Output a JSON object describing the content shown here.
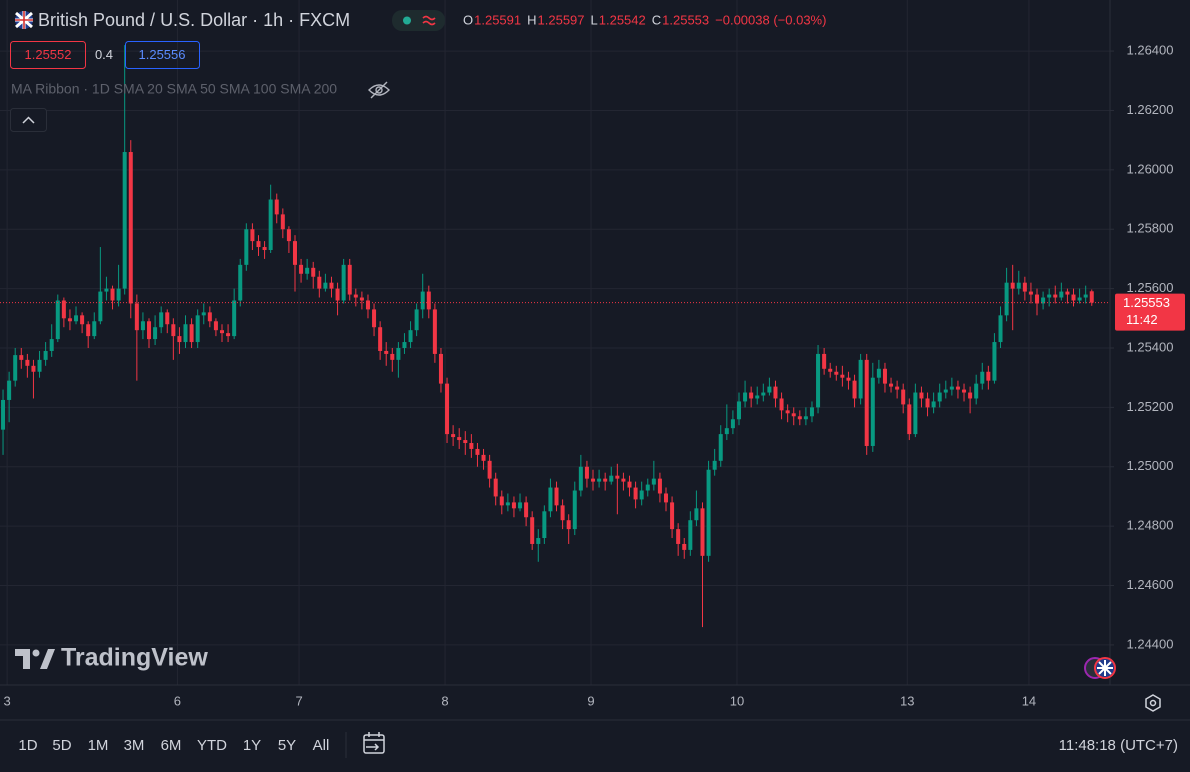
{
  "header": {
    "title": "British Pound / U.S. Dollar · 1h · FXCM",
    "ohlc_labels": [
      "O",
      "H",
      "L",
      "C"
    ],
    "change": "−0.00038 (−0.03%)",
    "sell": "1.25552",
    "spread": "0.4",
    "buy": "1.25556",
    "indicator": "MA Ribbon · 1D SMA 20 SMA 50 SMA 100 SMA 200"
  },
  "chart_data": {
    "type": "candlestick",
    "up_color": "#089981",
    "down_color": "#f23645",
    "grid": true,
    "xlim": [
      -0.5,
      182
    ],
    "ylim": [
      1.24265,
      1.26572
    ],
    "xticks": [
      {
        "value": 1,
        "label": "3"
      },
      {
        "value": 29,
        "label": "6"
      },
      {
        "value": 49,
        "label": "7"
      },
      {
        "value": 73,
        "label": "8"
      },
      {
        "value": 97,
        "label": "9"
      },
      {
        "value": 121,
        "label": "10"
      },
      {
        "value": 149,
        "label": "13"
      },
      {
        "value": 169,
        "label": "14"
      }
    ],
    "yticks": [
      {
        "value": 1.264,
        "label": "1.26400"
      },
      {
        "value": 1.262,
        "label": "1.26200"
      },
      {
        "value": 1.26,
        "label": "1.26000"
      },
      {
        "value": 1.258,
        "label": "1.25800"
      },
      {
        "value": 1.256,
        "label": "1.25600"
      },
      {
        "value": 1.254,
        "label": "1.25400"
      },
      {
        "value": 1.252,
        "label": "1.25200"
      },
      {
        "value": 1.25,
        "label": "1.25000"
      },
      {
        "value": 1.248,
        "label": "1.24800"
      },
      {
        "value": 1.246,
        "label": "1.24600"
      },
      {
        "value": 1.244,
        "label": "1.24400"
      }
    ],
    "last_price_countdown": "11:42",
    "candles": [
      [
        1.25125,
        1.2526,
        1.2504,
        1.25225
      ],
      [
        1.25225,
        1.2532,
        1.2515,
        1.2529
      ],
      [
        1.2529,
        1.254,
        1.2527,
        1.25376
      ],
      [
        1.25376,
        1.254,
        1.2533,
        1.2536
      ],
      [
        1.2536,
        1.2538,
        1.253,
        1.2534
      ],
      [
        1.2534,
        1.2536,
        1.2523,
        1.2532
      ],
      [
        1.2532,
        1.2539,
        1.253,
        1.2536
      ],
      [
        1.2536,
        1.2542,
        1.2534,
        1.2539
      ],
      [
        1.2539,
        1.2548,
        1.2537,
        1.2543
      ],
      [
        1.2543,
        1.2558,
        1.2542,
        1.2556
      ],
      [
        1.2556,
        1.2557,
        1.2547,
        1.255
      ],
      [
        1.255,
        1.2553,
        1.2546,
        1.2549
      ],
      [
        1.2549,
        1.2554,
        1.2548,
        1.2551
      ],
      [
        1.2551,
        1.2552,
        1.2545,
        1.2548
      ],
      [
        1.2548,
        1.2549,
        1.254,
        1.2544
      ],
      [
        1.2544,
        1.2552,
        1.2543,
        1.2549
      ],
      [
        1.2549,
        1.2574,
        1.2548,
        1.2559
      ],
      [
        1.2559,
        1.2564,
        1.2556,
        1.256
      ],
      [
        1.256,
        1.2561,
        1.2553,
        1.2556
      ],
      [
        1.2556,
        1.2568,
        1.2554,
        1.256
      ],
      [
        1.256,
        1.2642,
        1.2558,
        1.2606
      ],
      [
        1.2606,
        1.261,
        1.255,
        1.2555
      ],
      [
        1.2555,
        1.2558,
        1.2529,
        1.2546
      ],
      [
        1.2546,
        1.2552,
        1.2543,
        1.2549
      ],
      [
        1.2549,
        1.255,
        1.254,
        1.2543
      ],
      [
        1.2543,
        1.2551,
        1.2541,
        1.2547
      ],
      [
        1.2547,
        1.2554,
        1.2545,
        1.2552
      ],
      [
        1.2552,
        1.2553,
        1.2545,
        1.2548
      ],
      [
        1.2548,
        1.255,
        1.2536,
        1.2544
      ],
      [
        1.2544,
        1.2547,
        1.2538,
        1.2542
      ],
      [
        1.2542,
        1.2551,
        1.254,
        1.2548
      ],
      [
        1.2548,
        1.255,
        1.254,
        1.2542
      ],
      [
        1.2542,
        1.2553,
        1.254,
        1.2551
      ],
      [
        1.2551,
        1.2555,
        1.2548,
        1.2552
      ],
      [
        1.2552,
        1.2554,
        1.2547,
        1.2549
      ],
      [
        1.2549,
        1.255,
        1.2544,
        1.2546
      ],
      [
        1.2546,
        1.2548,
        1.2542,
        1.2545
      ],
      [
        1.2545,
        1.2548,
        1.2542,
        1.2544
      ],
      [
        1.2544,
        1.256,
        1.2543,
        1.2556
      ],
      [
        1.2556,
        1.257,
        1.2554,
        1.2568
      ],
      [
        1.2568,
        1.2582,
        1.2566,
        1.258
      ],
      [
        1.258,
        1.2582,
        1.2573,
        1.2576
      ],
      [
        1.2576,
        1.2578,
        1.2571,
        1.2574
      ],
      [
        1.2574,
        1.2576,
        1.257,
        1.2573
      ],
      [
        1.2573,
        1.2595,
        1.2572,
        1.259
      ],
      [
        1.259,
        1.2592,
        1.2582,
        1.2585
      ],
      [
        1.2585,
        1.2587,
        1.2577,
        1.258
      ],
      [
        1.258,
        1.2581,
        1.2572,
        1.2576
      ],
      [
        1.2576,
        1.2578,
        1.2559,
        1.2568
      ],
      [
        1.2568,
        1.257,
        1.2562,
        1.2565
      ],
      [
        1.2565,
        1.257,
        1.2563,
        1.2567
      ],
      [
        1.2567,
        1.2569,
        1.256,
        1.2564
      ],
      [
        1.2564,
        1.2566,
        1.2557,
        1.256
      ],
      [
        1.256,
        1.2565,
        1.2559,
        1.2562
      ],
      [
        1.2562,
        1.2564,
        1.2557,
        1.256
      ],
      [
        1.256,
        1.2562,
        1.2551,
        1.2556
      ],
      [
        1.2556,
        1.257,
        1.2555,
        1.2568
      ],
      [
        1.2568,
        1.257,
        1.2556,
        1.2558
      ],
      [
        1.2558,
        1.256,
        1.2554,
        1.2557
      ],
      [
        1.2557,
        1.2559,
        1.2553,
        1.2556
      ],
      [
        1.2556,
        1.2558,
        1.255,
        1.2553
      ],
      [
        1.2553,
        1.2555,
        1.2544,
        1.2547
      ],
      [
        1.2547,
        1.2549,
        1.2536,
        1.2539
      ],
      [
        1.2539,
        1.2542,
        1.2534,
        1.2538
      ],
      [
        1.2538,
        1.254,
        1.2532,
        1.2536
      ],
      [
        1.2536,
        1.2542,
        1.253,
        1.254
      ],
      [
        1.254,
        1.2545,
        1.2538,
        1.2542
      ],
      [
        1.2542,
        1.2549,
        1.254,
        1.2546
      ],
      [
        1.2546,
        1.2555,
        1.2544,
        1.2553
      ],
      [
        1.2553,
        1.2565,
        1.255,
        1.2559
      ],
      [
        1.2559,
        1.2561,
        1.255,
        1.2553
      ],
      [
        1.2553,
        1.2555,
        1.2535,
        1.2538
      ],
      [
        1.2538,
        1.254,
        1.2525,
        1.2528
      ],
      [
        1.2528,
        1.253,
        1.2508,
        1.2511
      ],
      [
        1.2511,
        1.2514,
        1.2507,
        1.251
      ],
      [
        1.251,
        1.2513,
        1.2506,
        1.2509
      ],
      [
        1.2509,
        1.2512,
        1.2504,
        1.2508
      ],
      [
        1.2508,
        1.2511,
        1.2503,
        1.2506
      ],
      [
        1.2506,
        1.2508,
        1.25,
        1.2504
      ],
      [
        1.2504,
        1.2506,
        1.2499,
        1.2502
      ],
      [
        1.2502,
        1.2504,
        1.2493,
        1.2496
      ],
      [
        1.2496,
        1.2498,
        1.2487,
        1.249
      ],
      [
        1.249,
        1.2492,
        1.2484,
        1.2487
      ],
      [
        1.2487,
        1.2491,
        1.2485,
        1.2488
      ],
      [
        1.2488,
        1.249,
        1.2483,
        1.2486
      ],
      [
        1.2486,
        1.2491,
        1.2485,
        1.2488
      ],
      [
        1.2488,
        1.249,
        1.248,
        1.2483
      ],
      [
        1.2483,
        1.2485,
        1.2472,
        1.2474
      ],
      [
        1.2474,
        1.2479,
        1.2468,
        1.2476
      ],
      [
        1.2476,
        1.2487,
        1.2474,
        1.2485
      ],
      [
        1.2485,
        1.2496,
        1.2483,
        1.2493
      ],
      [
        1.2493,
        1.2495,
        1.2485,
        1.2487
      ],
      [
        1.2487,
        1.2489,
        1.2479,
        1.2482
      ],
      [
        1.2482,
        1.2484,
        1.2474,
        1.2479
      ],
      [
        1.2479,
        1.2495,
        1.2477,
        1.2492
      ],
      [
        1.2492,
        1.2504,
        1.249,
        1.25
      ],
      [
        1.25,
        1.2502,
        1.2493,
        1.2496
      ],
      [
        1.2496,
        1.2499,
        1.2492,
        1.2495
      ],
      [
        1.2495,
        1.2499,
        1.2493,
        1.2496
      ],
      [
        1.2496,
        1.2498,
        1.2492,
        1.2495
      ],
      [
        1.2495,
        1.25,
        1.2494,
        1.2497
      ],
      [
        1.2497,
        1.2501,
        1.2484,
        1.2496
      ],
      [
        1.2496,
        1.2498,
        1.2492,
        1.2495
      ],
      [
        1.2495,
        1.2497,
        1.249,
        1.2493
      ],
      [
        1.2493,
        1.2495,
        1.2486,
        1.2489
      ],
      [
        1.2489,
        1.2495,
        1.2487,
        1.2492
      ],
      [
        1.2492,
        1.2496,
        1.249,
        1.2494
      ],
      [
        1.2494,
        1.2502,
        1.2492,
        1.2496
      ],
      [
        1.2496,
        1.2498,
        1.2488,
        1.2491
      ],
      [
        1.2491,
        1.2493,
        1.2485,
        1.2488
      ],
      [
        1.2488,
        1.249,
        1.2476,
        1.2479
      ],
      [
        1.2479,
        1.2481,
        1.247,
        1.2474
      ],
      [
        1.2474,
        1.2476,
        1.2469,
        1.2472
      ],
      [
        1.2472,
        1.2485,
        1.247,
        1.2482
      ],
      [
        1.2482,
        1.2492,
        1.248,
        1.2486
      ],
      [
        1.2486,
        1.2488,
        1.2446,
        1.247
      ],
      [
        1.247,
        1.2502,
        1.2468,
        1.2499
      ],
      [
        1.2499,
        1.2506,
        1.2497,
        1.2502
      ],
      [
        1.2502,
        1.2514,
        1.25,
        1.2511
      ],
      [
        1.2511,
        1.2521,
        1.2509,
        1.2513
      ],
      [
        1.2513,
        1.2519,
        1.2511,
        1.2516
      ],
      [
        1.2516,
        1.2525,
        1.2514,
        1.2522
      ],
      [
        1.2522,
        1.2529,
        1.252,
        1.2525
      ],
      [
        1.2525,
        1.2527,
        1.252,
        1.2523
      ],
      [
        1.2523,
        1.2527,
        1.2521,
        1.2524
      ],
      [
        1.2524,
        1.2528,
        1.2522,
        1.2525
      ],
      [
        1.2525,
        1.253,
        1.2524,
        1.2527
      ],
      [
        1.2527,
        1.2529,
        1.252,
        1.2523
      ],
      [
        1.2523,
        1.2525,
        1.2516,
        1.2519
      ],
      [
        1.2519,
        1.2521,
        1.2515,
        1.2518
      ],
      [
        1.2518,
        1.252,
        1.2514,
        1.2517
      ],
      [
        1.2517,
        1.2519,
        1.2514,
        1.2516
      ],
      [
        1.2516,
        1.252,
        1.2514,
        1.2517
      ],
      [
        1.2517,
        1.2522,
        1.2515,
        1.252
      ],
      [
        1.252,
        1.2541,
        1.2518,
        1.2538
      ],
      [
        1.2538,
        1.254,
        1.2531,
        1.2533
      ],
      [
        1.2533,
        1.2535,
        1.253,
        1.2532
      ],
      [
        1.2532,
        1.2534,
        1.2529,
        1.2531
      ],
      [
        1.2531,
        1.2534,
        1.2527,
        1.253
      ],
      [
        1.253,
        1.2532,
        1.2526,
        1.2529
      ],
      [
        1.2529,
        1.2531,
        1.252,
        1.2523
      ],
      [
        1.2523,
        1.2538,
        1.2521,
        1.2536
      ],
      [
        1.2536,
        1.2538,
        1.2504,
        1.2507
      ],
      [
        1.2507,
        1.2535,
        1.2505,
        1.253
      ],
      [
        1.253,
        1.2536,
        1.2528,
        1.2533
      ],
      [
        1.2533,
        1.2535,
        1.2525,
        1.2528
      ],
      [
        1.2528,
        1.253,
        1.2525,
        1.2527
      ],
      [
        1.2527,
        1.2529,
        1.2523,
        1.2526
      ],
      [
        1.2526,
        1.2528,
        1.2518,
        1.2521
      ],
      [
        1.2521,
        1.2523,
        1.2509,
        1.2511
      ],
      [
        1.2511,
        1.2528,
        1.251,
        1.2525
      ],
      [
        1.2525,
        1.2527,
        1.252,
        1.2523
      ],
      [
        1.2523,
        1.2525,
        1.2517,
        1.252
      ],
      [
        1.252,
        1.2525,
        1.2518,
        1.2522
      ],
      [
        1.2522,
        1.2528,
        1.252,
        1.2525
      ],
      [
        1.2525,
        1.2529,
        1.2523,
        1.2526
      ],
      [
        1.2526,
        1.253,
        1.2524,
        1.2527
      ],
      [
        1.2527,
        1.2529,
        1.2523,
        1.2526
      ],
      [
        1.2526,
        1.2528,
        1.2522,
        1.2525
      ],
      [
        1.2525,
        1.2527,
        1.2518,
        1.2523
      ],
      [
        1.2523,
        1.2531,
        1.2521,
        1.2528
      ],
      [
        1.2528,
        1.2535,
        1.2526,
        1.2532
      ],
      [
        1.2532,
        1.2534,
        1.2526,
        1.2529
      ],
      [
        1.2529,
        1.2545,
        1.2528,
        1.2542
      ],
      [
        1.2542,
        1.2554,
        1.254,
        1.2551
      ],
      [
        1.2551,
        1.2567,
        1.2549,
        1.2562
      ],
      [
        1.2562,
        1.2568,
        1.2546,
        1.256
      ],
      [
        1.256,
        1.2566,
        1.2558,
        1.2562
      ],
      [
        1.2562,
        1.2564,
        1.2556,
        1.2559
      ],
      [
        1.2559,
        1.2562,
        1.2555,
        1.2558
      ],
      [
        1.2558,
        1.256,
        1.2551,
        1.2555
      ],
      [
        1.2555,
        1.2559,
        1.2553,
        1.2557
      ],
      [
        1.2557,
        1.256,
        1.2554,
        1.2558
      ],
      [
        1.2558,
        1.2561,
        1.2555,
        1.2557
      ],
      [
        1.2557,
        1.2562,
        1.2556,
        1.2559
      ],
      [
        1.2559,
        1.256,
        1.2555,
        1.2558
      ],
      [
        1.2558,
        1.256,
        1.2554,
        1.2556
      ],
      [
        1.2556,
        1.256,
        1.2555,
        1.2557
      ],
      [
        1.2557,
        1.2561,
        1.2555,
        1.2558
      ],
      [
        1.25591,
        1.25597,
        1.25542,
        1.25553
      ]
    ]
  },
  "watermark": "TradingView",
  "toolbar": {
    "ranges": [
      "1D",
      "5D",
      "1M",
      "3M",
      "6M",
      "YTD",
      "1Y",
      "5Y",
      "All"
    ],
    "clock": "11:48:18 (UTC+7)"
  }
}
